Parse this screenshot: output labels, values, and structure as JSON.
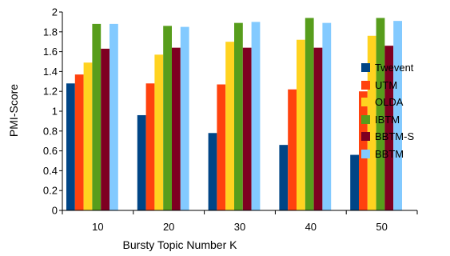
{
  "chart_data": {
    "type": "bar",
    "title": "",
    "xlabel": "Bursty Topic Number K",
    "ylabel": "PMI-Score",
    "categories": [
      "10",
      "20",
      "30",
      "40",
      "50"
    ],
    "ylim": [
      0,
      2
    ],
    "yticks": [
      "0",
      "0.2",
      "0.4",
      "0.6",
      "0.8",
      "1",
      "1.2",
      "1.4",
      "1.6",
      "1.8",
      "2"
    ],
    "grid": false,
    "legend_position": "right",
    "series": [
      {
        "name": "Twevent",
        "color": "#004586",
        "values": [
          1.28,
          0.96,
          0.78,
          0.66,
          0.56
        ]
      },
      {
        "name": "UTM",
        "color": "#ff420e",
        "values": [
          1.37,
          1.28,
          1.27,
          1.22,
          1.2
        ]
      },
      {
        "name": "OLDA",
        "color": "#ffd320",
        "values": [
          1.49,
          1.57,
          1.7,
          1.72,
          1.76
        ]
      },
      {
        "name": "IBTM",
        "color": "#579d1c",
        "values": [
          1.88,
          1.86,
          1.89,
          1.94,
          1.94
        ]
      },
      {
        "name": "BBTM-S",
        "color": "#7e0021",
        "values": [
          1.63,
          1.64,
          1.64,
          1.64,
          1.66
        ]
      },
      {
        "name": "BBTM",
        "color": "#83caff",
        "values": [
          1.88,
          1.85,
          1.9,
          1.89,
          1.91
        ]
      }
    ]
  }
}
